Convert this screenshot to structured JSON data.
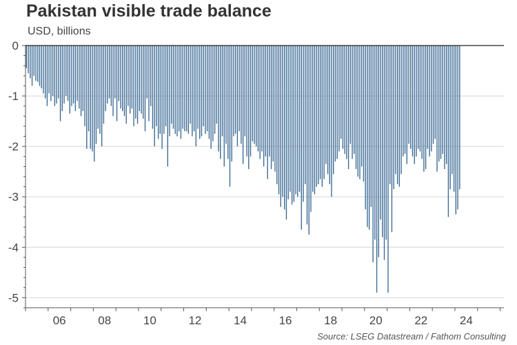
{
  "header": {
    "title": "Pakistan visible trade balance",
    "subtitle": "USD, billions"
  },
  "footer": {
    "source": "Source: LSEG Datastream / Fathom Consulting"
  },
  "colors": {
    "bar": "#3d6b95",
    "axis": "#555555",
    "grid": "#d6d6d6",
    "zero_line": "#222222"
  },
  "chart_data": {
    "type": "bar",
    "title": "Pakistan visible trade balance",
    "ylabel": "USD, billions",
    "xlabel": "",
    "ylim": [
      -5.2,
      0
    ],
    "yticks": [
      0,
      -1,
      -2,
      -3,
      -4,
      -5
    ],
    "ytick_labels": [
      "0",
      "-1",
      "-2",
      "-3",
      "-4",
      "-5"
    ],
    "xlim": [
      "2005-01",
      "2026-03"
    ],
    "xticks": [
      2006,
      2008,
      2010,
      2012,
      2014,
      2016,
      2018,
      2020,
      2022,
      2024
    ],
    "xtick_labels": [
      "06",
      "08",
      "10",
      "12",
      "14",
      "16",
      "18",
      "20",
      "22",
      "24"
    ],
    "grid": true,
    "frequency": "monthly",
    "start": "2005-01",
    "series": [
      {
        "name": "Pakistan visible trade balance",
        "values": [
          -0.45,
          -0.55,
          -0.65,
          -0.8,
          -0.6,
          -0.7,
          -0.72,
          -0.8,
          -0.85,
          -0.95,
          -1.05,
          -1.2,
          -0.95,
          -1.1,
          -1.0,
          -1.2,
          -1.15,
          -1.05,
          -1.5,
          -1.3,
          -1.15,
          -1.0,
          -1.1,
          -1.35,
          -1.2,
          -1.15,
          -1.3,
          -1.1,
          -1.25,
          -1.4,
          -1.3,
          -1.6,
          -2.05,
          -1.7,
          -2.05,
          -2.1,
          -2.3,
          -1.95,
          -1.65,
          -1.75,
          -2.0,
          -1.55,
          -1.3,
          -1.15,
          -1.05,
          -1.2,
          -1.4,
          -1.05,
          -1.5,
          -1.1,
          -1.25,
          -1.3,
          -1.4,
          -1.55,
          -1.2,
          -1.35,
          -1.25,
          -1.6,
          -1.45,
          -1.55,
          -1.3,
          -1.35,
          -1.45,
          -1.7,
          -1.05,
          -1.5,
          -1.2,
          -1.65,
          -2.0,
          -1.6,
          -1.85,
          -1.75,
          -2.05,
          -1.75,
          -1.6,
          -2.4,
          -1.8,
          -1.55,
          -1.65,
          -1.75,
          -1.8,
          -1.7,
          -1.85,
          -1.65,
          -1.7,
          -1.7,
          -1.75,
          -1.55,
          -1.8,
          -1.7,
          -2.0,
          -1.65,
          -1.85,
          -1.8,
          -1.6,
          -1.75,
          -1.7,
          -1.85,
          -2.05,
          -1.9,
          -1.75,
          -1.55,
          -2.1,
          -2.25,
          -1.8,
          -2.4,
          -1.95,
          -2.25,
          -2.8,
          -2.3,
          -1.8,
          -1.75,
          -2.0,
          -1.7,
          -1.95,
          -2.35,
          -1.8,
          -2.2,
          -2.45,
          -2.2,
          -1.9,
          -1.95,
          -2.0,
          -2.1,
          -2.25,
          -2.1,
          -2.4,
          -2.2,
          -2.65,
          -2.2,
          -2.45,
          -2.3,
          -2.5,
          -2.75,
          -2.95,
          -3.2,
          -3.0,
          -3.25,
          -3.45,
          -3.05,
          -2.9,
          -3.15,
          -3.1,
          -2.95,
          -3.0,
          -2.9,
          -3.65,
          -3.1,
          -2.75,
          -3.55,
          -3.75,
          -3.3,
          -2.9,
          -2.95,
          -2.8,
          -2.75,
          -2.65,
          -2.8,
          -2.65,
          -2.35,
          -2.55,
          -2.75,
          -3.0,
          -2.55,
          -2.3,
          -2.25,
          -2.1,
          -1.85,
          -2.05,
          -2.15,
          -2.25,
          -2.45,
          -1.95,
          -2.25,
          -2.15,
          -2.45,
          -2.6,
          -2.65,
          -2.4,
          -2.7,
          -3.25,
          -3.6,
          -3.65,
          -3.2,
          -4.3,
          -3.85,
          -4.9,
          -4.2,
          -3.45,
          -3.8,
          -4.25,
          -3.85,
          -4.9,
          -2.75,
          -3.7,
          -2.85,
          -2.55,
          -2.75,
          -2.8,
          -2.55,
          -2.2,
          -2.15,
          -2.35,
          -1.95,
          -2.05,
          -2.2,
          -2.35,
          -2.2,
          -2.05,
          -2.1,
          -2.25,
          -2.5,
          -2.45,
          -2.05,
          -2.2,
          -2.1,
          -1.95,
          -1.85,
          -2.5,
          -2.3,
          -2.25,
          -2.15,
          -2.45,
          -2.35,
          -3.4,
          -2.85,
          -2.55,
          -2.9,
          -3.35,
          -3.25,
          -2.85
        ]
      }
    ]
  }
}
